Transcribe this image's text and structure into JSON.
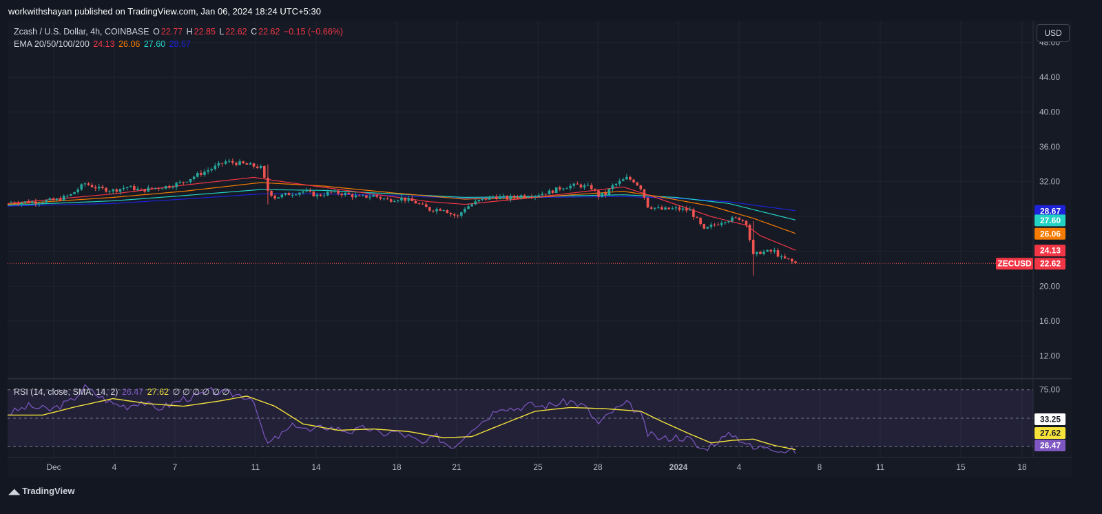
{
  "header": {
    "published": "workwithshayan published on TradingView.com, Jan 06, 2024 18:24 UTC+5:30"
  },
  "legend_main": {
    "symbol": "Zcash / U.S. Dollar, 4h, COINBASE",
    "o_label": "O",
    "o": "22.77",
    "h_label": "H",
    "h": "22.85",
    "l_label": "L",
    "l": "22.62",
    "c_label": "C",
    "c": "22.62",
    "change": "−0.15 (−0.66%)"
  },
  "legend_ema": {
    "label": "EMA 20/50/100/200",
    "v20": "24.13",
    "v50": "26.06",
    "v100": "27.60",
    "v200": "28.67"
  },
  "legend_rsi": {
    "label": "RSI (14, close, SMA, 14, 2)",
    "rsi": "26.47",
    "sma": "27.62",
    "rest": "∅ ∅ ∅ ∅ ∅ ∅"
  },
  "currency_button": "USD",
  "footer": {
    "brand": "TradingView"
  },
  "colors": {
    "bg": "#131722",
    "up": "#26a69a",
    "down": "#ef5350",
    "ema20": "#f23645",
    "ema50": "#f57c00",
    "ema100": "#22d3c5",
    "ema200": "#1e22d8",
    "rsi": "#7e57c2",
    "rsi_sma": "#f5e33b"
  },
  "chart_data": {
    "type": "candlestick",
    "price_axis": {
      "ticks": [
        "48.00",
        "44.00",
        "40.00",
        "36.00",
        "32.00",
        "28.00",
        "24.00",
        "20.00",
        "16.00",
        "12.00"
      ],
      "range": [
        9.5,
        50.5
      ]
    },
    "time_axis": {
      "labels": [
        "Dec",
        "4",
        "7",
        "11",
        "14",
        "18",
        "21",
        "25",
        "28",
        "2024",
        "4",
        "8",
        "11",
        "15",
        "18"
      ]
    },
    "price_badges": [
      {
        "label": "",
        "value": "28.67",
        "color": "#1e22d8"
      },
      {
        "label": "",
        "value": "27.60",
        "color": "#22d3c5"
      },
      {
        "label": "",
        "value": "26.06",
        "color": "#f57c00"
      },
      {
        "label": "",
        "value": "24.13",
        "color": "#f23645"
      },
      {
        "label": "ZECUSD",
        "value": "22.62",
        "color": "#f23645"
      }
    ],
    "last_price": 22.62,
    "close_path": [
      [
        0,
        29.6
      ],
      [
        8,
        29.7
      ],
      [
        14,
        29.9
      ],
      [
        18,
        30.5
      ],
      [
        22,
        31.8
      ],
      [
        26,
        31.2
      ],
      [
        30,
        31.0
      ],
      [
        34,
        31.4
      ],
      [
        38,
        31.0
      ],
      [
        42,
        31.3
      ],
      [
        46,
        31.5
      ],
      [
        50,
        32.0
      ],
      [
        54,
        32.8
      ],
      [
        58,
        33.5
      ],
      [
        62,
        34.3
      ],
      [
        66,
        34.1
      ],
      [
        70,
        33.8
      ],
      [
        72,
        33.6
      ],
      [
        74,
        31.0
      ],
      [
        76,
        30.2
      ],
      [
        80,
        30.6
      ],
      [
        84,
        30.9
      ],
      [
        88,
        30.4
      ],
      [
        92,
        30.8
      ],
      [
        96,
        30.6
      ],
      [
        100,
        30.2
      ],
      [
        104,
        30.4
      ],
      [
        108,
        29.9
      ],
      [
        112,
        30.1
      ],
      [
        116,
        29.6
      ],
      [
        120,
        28.8
      ],
      [
        124,
        28.9
      ],
      [
        126,
        28.3
      ],
      [
        128,
        28.0
      ],
      [
        130,
        29.0
      ],
      [
        134,
        29.8
      ],
      [
        138,
        30.3
      ],
      [
        142,
        30.1
      ],
      [
        146,
        30.4
      ],
      [
        150,
        30.5
      ],
      [
        154,
        30.8
      ],
      [
        158,
        31.4
      ],
      [
        162,
        31.6
      ],
      [
        166,
        31.3
      ],
      [
        168,
        30.4
      ],
      [
        170,
        30.6
      ],
      [
        172,
        31.5
      ],
      [
        176,
        32.4
      ],
      [
        178,
        32.1
      ],
      [
        180,
        31.3
      ],
      [
        182,
        29.2
      ],
      [
        186,
        28.8
      ],
      [
        190,
        28.9
      ],
      [
        194,
        28.7
      ],
      [
        196,
        27.6
      ],
      [
        198,
        26.4
      ],
      [
        200,
        26.9
      ],
      [
        204,
        27.6
      ],
      [
        208,
        27.8
      ],
      [
        210,
        27.3
      ],
      [
        212,
        23.5
      ],
      [
        214,
        23.9
      ],
      [
        218,
        24.0
      ],
      [
        220,
        23.2
      ],
      [
        222,
        23.0
      ],
      [
        224,
        22.6
      ]
    ],
    "ema20": [
      [
        0,
        29.5
      ],
      [
        30,
        30.6
      ],
      [
        50,
        31.6
      ],
      [
        70,
        32.5
      ],
      [
        80,
        31.9
      ],
      [
        100,
        30.8
      ],
      [
        120,
        29.7
      ],
      [
        130,
        29.4
      ],
      [
        150,
        30.2
      ],
      [
        175,
        31.4
      ],
      [
        182,
        30.5
      ],
      [
        200,
        28.0
      ],
      [
        210,
        27.0
      ],
      [
        214,
        25.8
      ],
      [
        224,
        24.13
      ]
    ],
    "ema50": [
      [
        0,
        29.4
      ],
      [
        30,
        30.2
      ],
      [
        50,
        30.9
      ],
      [
        72,
        31.9
      ],
      [
        90,
        31.5
      ],
      [
        110,
        30.7
      ],
      [
        130,
        30.0
      ],
      [
        150,
        30.2
      ],
      [
        175,
        30.9
      ],
      [
        185,
        30.3
      ],
      [
        200,
        29.2
      ],
      [
        212,
        27.8
      ],
      [
        224,
        26.06
      ]
    ],
    "ema100": [
      [
        0,
        29.3
      ],
      [
        30,
        29.8
      ],
      [
        50,
        30.4
      ],
      [
        72,
        31.1
      ],
      [
        90,
        31.0
      ],
      [
        110,
        30.6
      ],
      [
        130,
        30.2
      ],
      [
        150,
        30.3
      ],
      [
        175,
        30.5
      ],
      [
        190,
        30.2
      ],
      [
        205,
        29.5
      ],
      [
        224,
        27.6
      ]
    ],
    "ema200": [
      [
        0,
        29.2
      ],
      [
        30,
        29.5
      ],
      [
        50,
        30.0
      ],
      [
        72,
        30.6
      ],
      [
        90,
        30.6
      ],
      [
        110,
        30.4
      ],
      [
        130,
        30.1
      ],
      [
        150,
        30.2
      ],
      [
        175,
        30.3
      ],
      [
        190,
        30.1
      ],
      [
        205,
        29.7
      ],
      [
        224,
        28.67
      ]
    ],
    "rsi": {
      "ticks": [
        "75.00"
      ],
      "band": [
        30,
        75
      ],
      "range": [
        22,
        83
      ],
      "badges": [
        {
          "value": "33.25",
          "color": "#ffffff",
          "text_color": "#131722"
        },
        {
          "value": "27.62",
          "color": "#f5e33b",
          "text_color": "#131722"
        },
        {
          "value": "26.47",
          "color": "#7e57c2",
          "text_color": "#ffffff"
        }
      ],
      "rsi_path": [
        [
          0,
          56
        ],
        [
          6,
          62
        ],
        [
          12,
          59
        ],
        [
          18,
          66
        ],
        [
          22,
          77
        ],
        [
          26,
          70
        ],
        [
          30,
          64
        ],
        [
          34,
          62
        ],
        [
          38,
          66
        ],
        [
          42,
          60
        ],
        [
          46,
          63
        ],
        [
          50,
          68
        ],
        [
          54,
          70
        ],
        [
          58,
          74
        ],
        [
          62,
          72
        ],
        [
          66,
          71
        ],
        [
          70,
          68
        ],
        [
          72,
          45
        ],
        [
          74,
          32
        ],
        [
          78,
          40
        ],
        [
          82,
          48
        ],
        [
          86,
          42
        ],
        [
          90,
          46
        ],
        [
          94,
          44
        ],
        [
          98,
          42
        ],
        [
          102,
          45
        ],
        [
          106,
          40
        ],
        [
          110,
          42
        ],
        [
          114,
          38
        ],
        [
          118,
          32
        ],
        [
          122,
          38
        ],
        [
          126,
          30
        ],
        [
          128,
          33
        ],
        [
          132,
          45
        ],
        [
          136,
          52
        ],
        [
          140,
          62
        ],
        [
          144,
          60
        ],
        [
          148,
          63
        ],
        [
          152,
          62
        ],
        [
          156,
          64
        ],
        [
          160,
          66
        ],
        [
          164,
          62
        ],
        [
          168,
          48
        ],
        [
          172,
          58
        ],
        [
          176,
          64
        ],
        [
          178,
          60
        ],
        [
          180,
          55
        ],
        [
          182,
          40
        ],
        [
          186,
          36
        ],
        [
          190,
          38
        ],
        [
          194,
          36
        ],
        [
          196,
          30
        ],
        [
          198,
          28
        ],
        [
          202,
          35
        ],
        [
          206,
          40
        ],
        [
          210,
          33
        ],
        [
          212,
          28
        ],
        [
          216,
          31
        ],
        [
          220,
          27
        ],
        [
          224,
          26.47
        ]
      ],
      "sma_path": [
        [
          0,
          55
        ],
        [
          10,
          55
        ],
        [
          20,
          62
        ],
        [
          30,
          68
        ],
        [
          40,
          64
        ],
        [
          50,
          62
        ],
        [
          60,
          66
        ],
        [
          68,
          70
        ],
        [
          76,
          62
        ],
        [
          84,
          48
        ],
        [
          94,
          43
        ],
        [
          104,
          44
        ],
        [
          114,
          42
        ],
        [
          124,
          37
        ],
        [
          132,
          38
        ],
        [
          140,
          47
        ],
        [
          150,
          58
        ],
        [
          160,
          61
        ],
        [
          170,
          60
        ],
        [
          180,
          58
        ],
        [
          186,
          50
        ],
        [
          194,
          40
        ],
        [
          200,
          33
        ],
        [
          206,
          35
        ],
        [
          212,
          36
        ],
        [
          218,
          31
        ],
        [
          224,
          27.62
        ]
      ]
    }
  }
}
